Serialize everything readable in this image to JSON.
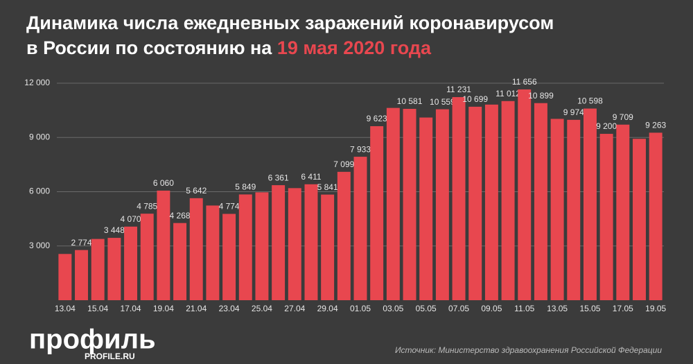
{
  "chart_data": {
    "type": "bar",
    "title": [
      "Динамика числа ежедневных заражений коронавирусом",
      "в России по состоянию на "
    ],
    "title_highlight": "19 мая 2020 года",
    "categories": [
      "13.04",
      null,
      "15.04",
      null,
      "17.04",
      null,
      "19.04",
      null,
      "21.04",
      null,
      "23.04",
      null,
      "25.04",
      null,
      "27.04",
      null,
      "29.04",
      null,
      "01.05",
      null,
      "03.05",
      null,
      "05.05",
      null,
      "07.05",
      null,
      "09.05",
      null,
      "11.05",
      null,
      "13.05",
      null,
      "15.05",
      null,
      "17.05",
      null,
      "19.05"
    ],
    "values": [
      2558,
      2774,
      3388,
      3448,
      4070,
      4785,
      6060,
      4268,
      5642,
      5236,
      4774,
      5849,
      5966,
      6361,
      6198,
      6411,
      5841,
      7099,
      7933,
      9623,
      10633,
      10581,
      10102,
      10559,
      11231,
      10699,
      10817,
      11012,
      11656,
      10899,
      10028,
      9974,
      10598,
      9200,
      9709,
      8926,
      9263
    ],
    "value_labels": [
      null,
      "2 774",
      null,
      "3 448",
      "4 070",
      "4 785",
      "6 060",
      "4 268",
      "5 642",
      null,
      "4 774",
      "5 849",
      null,
      "6 361",
      null,
      "6 411",
      "5 841",
      "7 099",
      "7 933",
      "9 623",
      null,
      "10 581",
      null,
      "10 559",
      "11 231",
      "10 699",
      null,
      "11 012",
      "11 656",
      "10 899",
      null,
      "9 974",
      "10 598",
      "9 200",
      "9 709",
      null,
      "9 263"
    ],
    "color": "#e8474f",
    "ylim": [
      0,
      12000
    ],
    "yticks": [
      {
        "value": 3000,
        "label": "3 000"
      },
      {
        "value": 6000,
        "label": "6 000"
      },
      {
        "value": 9000,
        "label": "9 000"
      },
      {
        "value": 12000,
        "label": "12 000"
      }
    ],
    "grid": true
  },
  "source": "Источник: Министерство здравоохранения Российской Федерации",
  "logo": {
    "name": "профиль",
    "url": "PROFILE.RU"
  }
}
